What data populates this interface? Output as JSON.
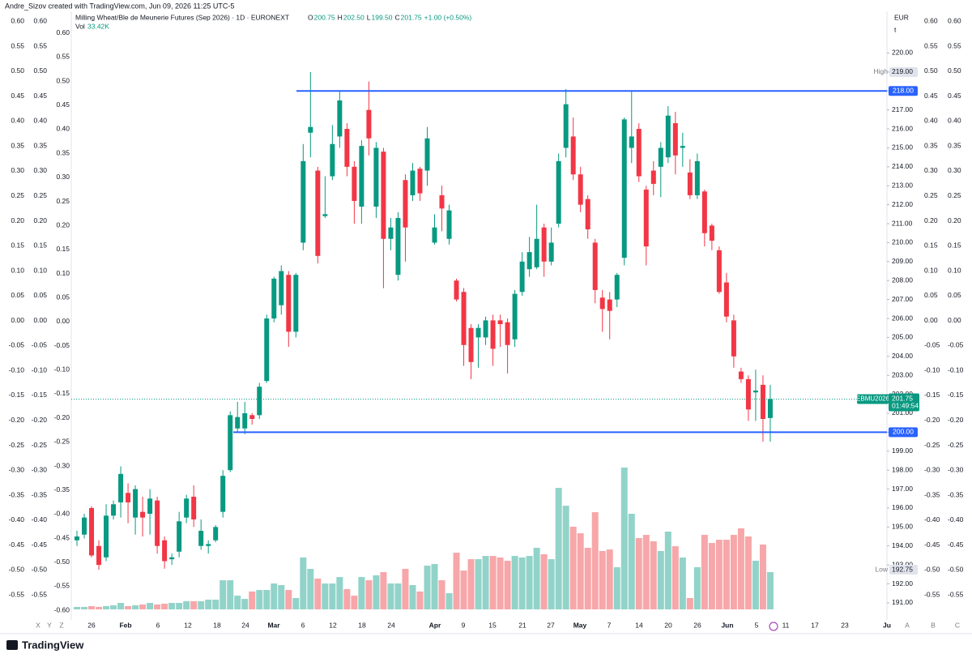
{
  "watermark": "Andre_Sizov created with TradingView.com, Jun 09, 2026 11:25 UTC-5",
  "footer": "TradingView",
  "chart_data": {
    "type": "candlestick",
    "title": "Milling Wheat/Ble de Meunerie Futures (Sep 2026) · 1D · EURONEXT",
    "legend": [
      {
        "key": "O",
        "value": "200.75"
      },
      {
        "key": "H",
        "value": "202.50"
      },
      {
        "key": "L",
        "value": "199.50"
      },
      {
        "key": "C",
        "value": "201.75"
      }
    ],
    "change": "+1.00 (+0.50%)",
    "volume_label": "Vol",
    "volume_value_label": "33.42K",
    "currency": "EUR",
    "unit": "t",
    "up_color": "#089981",
    "down_color": "#f23645",
    "volume_up_color": "#92d3c9",
    "volume_down_color": "#f7a6a9",
    "open": [
      194.3,
      194.6,
      196.0,
      194.0,
      193.4,
      195.6,
      196.3,
      196.8,
      195.5,
      195.8,
      195.7,
      196.4,
      194.3,
      193.3,
      193.7,
      195.5,
      196.6,
      194.0,
      194.0,
      194.3,
      195.8,
      198.0,
      200.2,
      200.2,
      200.9,
      200.9,
      202.7,
      206.0,
      206.7,
      208.3,
      205.3,
      210.0,
      215.8,
      213.8,
      211.4,
      213.5,
      215.6,
      216.0,
      214.0,
      211.9,
      217.0,
      211.9,
      214.8,
      210.2,
      208.3,
      213.3,
      212.5,
      213.9,
      213.8,
      210.0,
      212.5,
      210.2,
      208.0,
      207.4,
      205.5,
      205.0,
      205.0,
      205.9,
      205.9,
      205.8,
      204.9,
      207.4,
      208.6,
      208.7,
      210.8,
      209.0,
      211.0,
      215.0,
      215.6,
      213.6,
      212.3,
      210.0,
      207.1,
      207.0,
      207.0,
      209.2,
      215.0,
      216.0,
      212.8,
      213.8,
      214.0,
      214.5,
      216.3,
      215.0,
      213.7,
      212.5,
      212.7,
      210.9,
      209.6,
      207.9,
      205.9,
      203.2,
      202.8,
      202.1,
      202.5,
      200.75
    ],
    "high": [
      194.8,
      195.7,
      196.1,
      194.3,
      196.2,
      196.4,
      198.2,
      197.3,
      197.2,
      196.6,
      197.0,
      196.6,
      194.5,
      193.6,
      195.8,
      196.7,
      197.2,
      195.4,
      194.3,
      195.1,
      198.0,
      201.1,
      201.6,
      201.6,
      201.0,
      202.6,
      206.2,
      208.2,
      208.8,
      208.5,
      208.4,
      215.2,
      219.0,
      214.0,
      213.5,
      216.2,
      218.0,
      216.3,
      214.3,
      215.4,
      218.5,
      215.3,
      215.0,
      211.3,
      211.6,
      213.6,
      214.2,
      214.0,
      216.1,
      211.5,
      213.0,
      212.0,
      208.1,
      207.6,
      205.7,
      205.7,
      206.1,
      206.2,
      206.2,
      206.0,
      207.5,
      209.5,
      210.3,
      212.0,
      211.0,
      210.8,
      214.7,
      218.1,
      216.6,
      214.0,
      212.5,
      210.2,
      207.5,
      207.4,
      208.4,
      216.6,
      218.0,
      216.3,
      213.0,
      214.3,
      215.3,
      217.2,
      216.9,
      215.8,
      214.4,
      214.7,
      212.8,
      211.0,
      209.8,
      208.4,
      206.2,
      203.4,
      203.0,
      203.3,
      203.0,
      202.5
    ],
    "low": [
      194.0,
      194.4,
      193.4,
      192.75,
      193.2,
      195.4,
      195.5,
      195.2,
      194.6,
      194.5,
      194.6,
      193.6,
      192.8,
      193.0,
      193.4,
      195.2,
      195.0,
      193.8,
      193.6,
      194.2,
      195.5,
      197.9,
      200.0,
      199.9,
      200.4,
      200.7,
      202.6,
      205.8,
      206.2,
      204.5,
      205.0,
      209.6,
      214.5,
      208.9,
      211.3,
      213.3,
      215.0,
      213.5,
      211.0,
      211.0,
      214.6,
      211.3,
      207.6,
      209.6,
      208.0,
      209.0,
      212.2,
      212.2,
      213.0,
      209.9,
      210.6,
      209.9,
      206.9,
      203.5,
      202.8,
      203.4,
      204.6,
      203.5,
      204.5,
      203.1,
      204.5,
      207.2,
      208.2,
      208.6,
      208.2,
      208.8,
      210.8,
      214.5,
      213.3,
      211.6,
      210.2,
      206.8,
      205.3,
      204.9,
      206.6,
      208.8,
      214.2,
      213.2,
      208.8,
      212.5,
      212.4,
      214.2,
      213.6,
      214.0,
      212.3,
      212.3,
      209.8,
      209.6,
      207.3,
      205.8,
      203.4,
      202.6,
      200.6,
      200.6,
      199.5,
      199.5
    ],
    "close": [
      194.5,
      195.5,
      193.5,
      193.0,
      195.6,
      196.2,
      197.8,
      196.3,
      197.0,
      195.5,
      196.5,
      194.0,
      193.2,
      193.4,
      195.3,
      196.5,
      195.4,
      194.8,
      194.1,
      195.0,
      197.7,
      200.9,
      200.8,
      201.0,
      200.7,
      202.4,
      206.0,
      208.1,
      208.5,
      205.3,
      208.3,
      214.3,
      216.1,
      209.3,
      211.5,
      215.2,
      217.5,
      214.0,
      212.2,
      215.1,
      215.5,
      215.0,
      210.2,
      210.8,
      211.3,
      210.8,
      213.8,
      212.6,
      215.5,
      210.8,
      211.8,
      211.7,
      207.0,
      204.6,
      203.7,
      205.5,
      205.9,
      204.4,
      205.7,
      204.6,
      207.3,
      209.0,
      209.5,
      210.2,
      209.0,
      210.0,
      214.3,
      217.3,
      213.6,
      212.0,
      210.7,
      207.5,
      206.5,
      206.4,
      208.3,
      216.5,
      215.6,
      213.5,
      209.8,
      213.1,
      215.0,
      216.7,
      214.6,
      215.1,
      212.5,
      214.3,
      210.5,
      210.1,
      207.4,
      206.1,
      204.0,
      202.8,
      201.2,
      202.2,
      200.7,
      201.75
    ],
    "volume": [
      2.2,
      2.2,
      2.9,
      2.2,
      2.9,
      3.6,
      5.8,
      2.9,
      3.6,
      4.4,
      5.8,
      4.4,
      5.1,
      5.8,
      5.8,
      7.3,
      7.3,
      7.3,
      8.7,
      8.7,
      26.1,
      26.1,
      12.3,
      9.4,
      16.0,
      17.4,
      17.4,
      23.2,
      21.8,
      17.4,
      10.2,
      46.5,
      36.3,
      27.6,
      23.2,
      23.2,
      29.0,
      18.2,
      12.3,
      29.0,
      26.1,
      30.5,
      33.4,
      23.2,
      23.2,
      36.3,
      21.8,
      16.0,
      39.2,
      40.7,
      26.1,
      14.5,
      50.8,
      34.8,
      45.0,
      45.0,
      47.9,
      47.9,
      46.5,
      43.6,
      47.9,
      46.5,
      47.9,
      55.2,
      49.4,
      45.0,
      108.9,
      92.9,
      74.1,
      68.2,
      55.2,
      87.1,
      52.3,
      53.7,
      37.8,
      127.1,
      85.7,
      63.9,
      66.8,
      61.0,
      52.3,
      69.7,
      56.6,
      46.5,
      10.2,
      37.8,
      66.8,
      59.5,
      62.4,
      62.4,
      66.8,
      72.6,
      65.3,
      43.6,
      58.1,
      33.42
    ],
    "ylim": [
      190.1,
      222.2
    ],
    "yticks": [
      {
        "value": 220,
        "label": "220.00"
      },
      {
        "value": 219,
        "label": "219.00"
      },
      {
        "value": 218,
        "label": "218.00"
      },
      {
        "value": 217,
        "label": "217.00"
      },
      {
        "value": 216,
        "label": "216.00"
      },
      {
        "value": 215,
        "label": "215.00"
      },
      {
        "value": 214,
        "label": "214.00"
      },
      {
        "value": 213,
        "label": "213.00"
      },
      {
        "value": 212,
        "label": "212.00"
      },
      {
        "value": 211,
        "label": "211.00"
      },
      {
        "value": 210,
        "label": "210.00"
      },
      {
        "value": 209,
        "label": "209.00"
      },
      {
        "value": 208,
        "label": "208.00"
      },
      {
        "value": 207,
        "label": "207.00"
      },
      {
        "value": 206,
        "label": "206.00"
      },
      {
        "value": 205,
        "label": "205.00"
      },
      {
        "value": 204,
        "label": "204.00"
      },
      {
        "value": 203,
        "label": "203.00"
      },
      {
        "value": 202,
        "label": "202.00"
      },
      {
        "value": 201,
        "label": "201.00"
      },
      {
        "value": 200,
        "label": "200.00"
      },
      {
        "value": 199,
        "label": "199.00"
      },
      {
        "value": 198,
        "label": "198.00"
      },
      {
        "value": 197,
        "label": "197.00"
      },
      {
        "value": 196,
        "label": "196.00"
      },
      {
        "value": 195,
        "label": "195.00"
      },
      {
        "value": 194,
        "label": "194.00"
      },
      {
        "value": 193,
        "label": "193.00"
      },
      {
        "value": 192,
        "label": "192.00"
      },
      {
        "value": 191,
        "label": "191.00"
      }
    ],
    "x_labels": [
      "26",
      "Feb",
      "6",
      "12",
      "18",
      "24",
      "Mar",
      "6",
      "12",
      "18",
      "24",
      "Apr",
      "9",
      "15",
      "21",
      "27",
      "May",
      "7",
      "14",
      "20",
      "26",
      "Jun",
      "5",
      "11",
      "17",
      "23",
      "Ju"
    ],
    "levels": [
      {
        "value": 218,
        "label": "218.00",
        "color": "#2962ff"
      },
      {
        "value": 200,
        "label": "200.00",
        "color": "#2962ff"
      }
    ],
    "high_marker": {
      "label": "High",
      "value": 219,
      "value_label": "219.00"
    },
    "low_marker": {
      "label": "Low",
      "value": 192.75,
      "value_label": "192.75"
    },
    "last": {
      "symbol": "EBMU2026",
      "value": 201.75,
      "value_label": "201.75",
      "countdown": "01:49:54"
    },
    "side_ylim": [
      -0.6,
      0.62
    ],
    "side_yticks": [
      {
        "value": 0.6,
        "label": "0.60"
      },
      {
        "value": 0.55,
        "label": "0.55"
      },
      {
        "value": 0.5,
        "label": "0.50"
      },
      {
        "value": 0.45,
        "label": "0.45"
      },
      {
        "value": 0.4,
        "label": "0.40"
      },
      {
        "value": 0.35,
        "label": "0.35"
      },
      {
        "value": 0.3,
        "label": "0.30"
      },
      {
        "value": 0.25,
        "label": "0.25"
      },
      {
        "value": 0.2,
        "label": "0.20"
      },
      {
        "value": 0.15,
        "label": "0.15"
      },
      {
        "value": 0.1,
        "label": "0.10"
      },
      {
        "value": 0.05,
        "label": "0.05"
      },
      {
        "value": 0,
        "label": "0.00"
      },
      {
        "value": -0.05,
        "label": "-0.05"
      },
      {
        "value": -0.1,
        "label": "-0.10"
      },
      {
        "value": -0.15,
        "label": "-0.15"
      },
      {
        "value": -0.2,
        "label": "-0.20"
      },
      {
        "value": -0.25,
        "label": "-0.25"
      },
      {
        "value": -0.3,
        "label": "-0.30"
      },
      {
        "value": -0.35,
        "label": "-0.35"
      },
      {
        "value": -0.4,
        "label": "-0.40"
      },
      {
        "value": -0.45,
        "label": "-0.45"
      },
      {
        "value": -0.5,
        "label": "-0.50"
      },
      {
        "value": -0.55,
        "label": "-0.55"
      }
    ],
    "inner_ylim": [
      -0.62,
      0.645
    ],
    "inner_yticks": [
      {
        "value": 0.6,
        "label": "0.60"
      },
      {
        "value": 0.55,
        "label": "0.55"
      },
      {
        "value": 0.5,
        "label": "0.50"
      },
      {
        "value": 0.45,
        "label": "0.45"
      },
      {
        "value": 0.4,
        "label": "0.40"
      },
      {
        "value": 0.35,
        "label": "0.35"
      },
      {
        "value": 0.3,
        "label": "0.30"
      },
      {
        "value": 0.25,
        "label": "0.25"
      },
      {
        "value": 0.2,
        "label": "0.20"
      },
      {
        "value": 0.15,
        "label": "0.15"
      },
      {
        "value": 0.1,
        "label": "0.10"
      },
      {
        "value": 0.05,
        "label": "0.05"
      },
      {
        "value": 0,
        "label": "0.00"
      },
      {
        "value": -0.05,
        "label": "-0.05"
      },
      {
        "value": -0.1,
        "label": "-0.10"
      },
      {
        "value": -0.15,
        "label": "-0.15"
      },
      {
        "value": -0.2,
        "label": "-0.20"
      },
      {
        "value": -0.25,
        "label": "-0.25"
      },
      {
        "value": -0.3,
        "label": "-0.30"
      },
      {
        "value": -0.35,
        "label": "-0.35"
      },
      {
        "value": -0.4,
        "label": "-0.40"
      },
      {
        "value": -0.45,
        "label": "-0.45"
      },
      {
        "value": -0.5,
        "label": "-0.50"
      },
      {
        "value": -0.55,
        "label": "-0.55"
      },
      {
        "value": -0.6,
        "label": "-0.60"
      }
    ],
    "corner_labels_left": [
      "X",
      "Y",
      "Z"
    ],
    "corner_labels_right": [
      "A",
      "B",
      "C"
    ]
  }
}
